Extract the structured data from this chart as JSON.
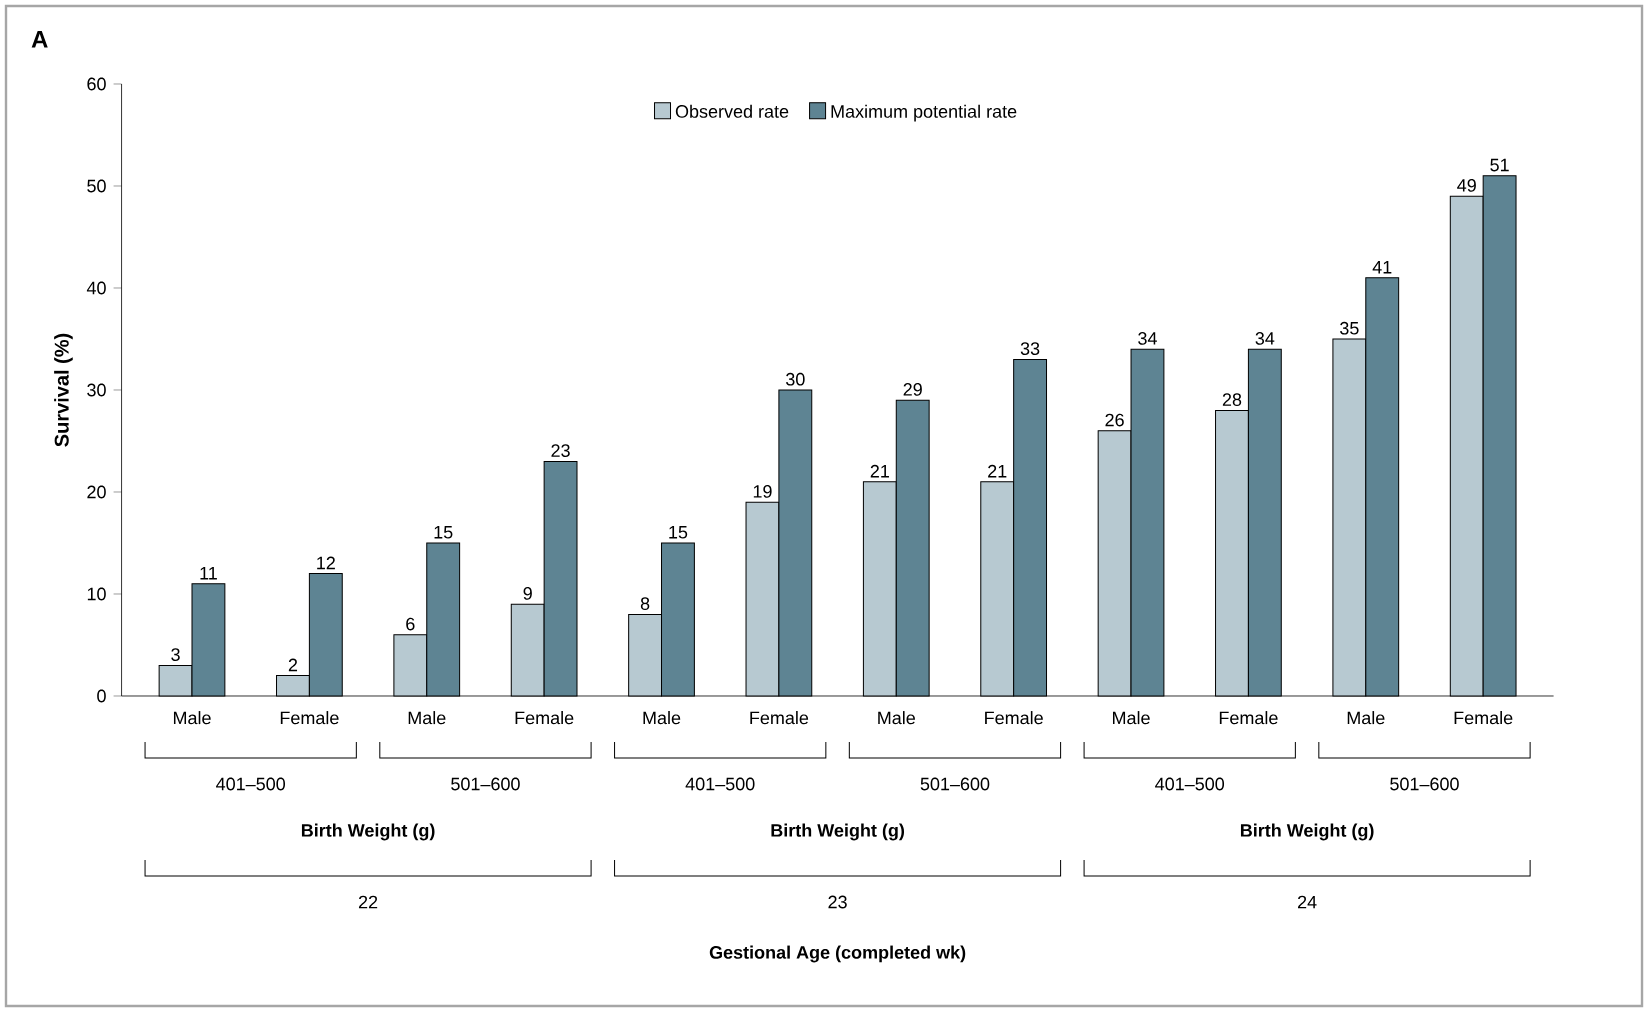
{
  "chart_data": {
    "type": "bar",
    "title": "A",
    "ylabel": "Survival (%)",
    "categories": [
      "Male",
      "Female",
      "Male",
      "Female",
      "Male",
      "Female",
      "Male",
      "Female",
      "Male",
      "Female",
      "Male",
      "Female"
    ],
    "series": [
      {
        "name": "Observed rate",
        "color": "#b7c9d1",
        "values": [
          3,
          2,
          6,
          9,
          8,
          19,
          21,
          21,
          26,
          28,
          35,
          49
        ]
      },
      {
        "name": "Maximum potential rate",
        "color": "#5e8493",
        "values": [
          11,
          12,
          15,
          23,
          15,
          30,
          29,
          33,
          34,
          34,
          41,
          51
        ]
      }
    ],
    "ylim": [
      0,
      60
    ],
    "yticks": [
      0,
      10,
      20,
      30,
      40,
      50,
      60
    ],
    "data_labels": true,
    "legend": "top",
    "annotations": [
      "401–500",
      "501–600",
      "401–500",
      "501–600",
      "401–500",
      "501–600",
      "Birth Weight (g)",
      "Birth Weight (g)",
      "Birth Weight (g)",
      "22",
      "23",
      "24",
      "Gestional Age (completed wk)"
    ]
  }
}
